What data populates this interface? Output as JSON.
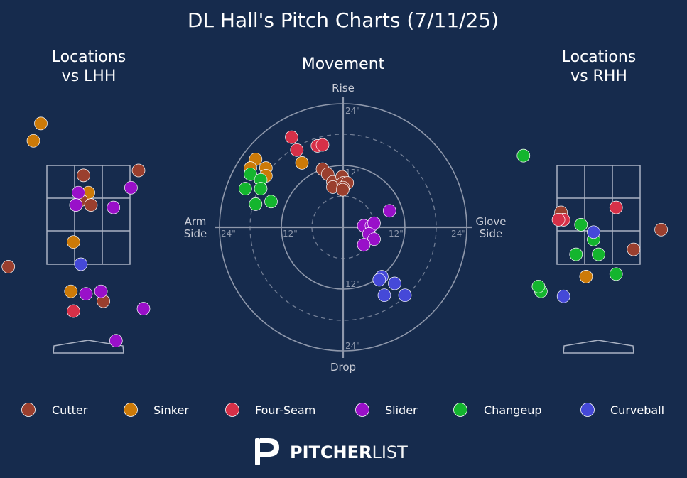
{
  "title": "DL Hall's Pitch Charts (7/11/25)",
  "colors": {
    "background": "#162b4d",
    "Cutter": "#9a3f2e",
    "Sinker": "#cc7a08",
    "Four-Seam": "#d63048",
    "Slider": "#9910c9",
    "Changeup": "#14b52e",
    "Curveball": "#4549d8"
  },
  "panels": {
    "lhh_title_line1": "Locations",
    "lhh_title_line2": "vs LHH",
    "movement_title": "Movement",
    "rhh_title_line1": "Locations",
    "rhh_title_line2": "vs RHH"
  },
  "movement_labels": {
    "top": "Rise",
    "bottom": "Drop",
    "left_line1": "Arm",
    "left_line2": "Side",
    "right_line1": "Glove",
    "right_line2": "Side",
    "tick_24": "24\"",
    "tick_12": "12\""
  },
  "brand": {
    "bold": "PITCHER",
    "light": "LIST"
  },
  "chart_data": [
    {
      "type": "scatter",
      "panel": "Locations vs LHH",
      "xlim": [
        -2,
        2
      ],
      "ylim": [
        0,
        5
      ],
      "series": [
        {
          "name": "Sinker",
          "points": [
            [
              -0.95,
              4.35
            ],
            [
              -1.1,
              4.0
            ],
            [
              -0.3,
              1.95
            ],
            [
              -0.35,
              0.95
            ],
            [
              0.0,
              2.95
            ]
          ]
        },
        {
          "name": "Cutter",
          "points": [
            [
              -0.1,
              3.3
            ],
            [
              -0.15,
              2.8
            ],
            [
              0.05,
              2.7
            ],
            [
              1.0,
              3.4
            ],
            [
              -1.6,
              1.45
            ],
            [
              0.3,
              0.75
            ]
          ]
        },
        {
          "name": "Four-Seam",
          "points": [
            [
              -0.3,
              0.55
            ]
          ]
        },
        {
          "name": "Slider",
          "points": [
            [
              -0.2,
              2.95
            ],
            [
              -0.25,
              2.7
            ],
            [
              0.5,
              2.65
            ],
            [
              0.85,
              3.05
            ],
            [
              0.25,
              0.95
            ],
            [
              -0.05,
              0.9
            ],
            [
              1.1,
              0.6
            ],
            [
              0.55,
              -0.05
            ]
          ]
        },
        {
          "name": "Curveball",
          "points": [
            [
              -0.15,
              1.5
            ]
          ]
        }
      ]
    },
    {
      "type": "scatter",
      "panel": "Movement",
      "xlim": [
        -24,
        24
      ],
      "ylim": [
        -24,
        24
      ],
      "series": [
        {
          "name": "Four-Seam",
          "points": [
            [
              -10,
              17.5
            ],
            [
              -9,
              15
            ],
            [
              -5,
              15.8
            ],
            [
              -4,
              16
            ]
          ]
        },
        {
          "name": "Sinker",
          "points": [
            [
              -17,
              13.2
            ],
            [
              -18,
              11.5
            ],
            [
              -15,
              11.5
            ],
            [
              -15,
              10
            ],
            [
              -8,
              12.5
            ]
          ]
        },
        {
          "name": "Changeup",
          "points": [
            [
              -18,
              10.3
            ],
            [
              -16,
              9.2
            ],
            [
              -19,
              7.5
            ],
            [
              -16,
              7.5
            ],
            [
              -17,
              4.5
            ],
            [
              -14,
              5
            ]
          ]
        },
        {
          "name": "Cutter",
          "points": [
            [
              -4,
              11.3
            ],
            [
              -3,
              10.3
            ],
            [
              -2,
              8.8
            ],
            [
              -2,
              7.8
            ],
            [
              -0.2,
              9.8
            ],
            [
              0,
              8.6
            ],
            [
              0.8,
              8.6
            ],
            [
              0,
              7.7
            ],
            [
              -0.1,
              7.3
            ]
          ]
        },
        {
          "name": "Slider",
          "points": [
            [
              9,
              3.2
            ],
            [
              4,
              0.3
            ],
            [
              5.5,
              0.3
            ],
            [
              6,
              0.8
            ],
            [
              5,
              -1.3
            ],
            [
              6,
              -2.3
            ],
            [
              4,
              -3.4
            ]
          ]
        },
        {
          "name": "Curveball",
          "points": [
            [
              7.5,
              -9.6
            ],
            [
              7,
              -10.2
            ],
            [
              10,
              -10.9
            ],
            [
              8,
              -13.2
            ],
            [
              12,
              -13.2
            ]
          ]
        }
      ]
    },
    {
      "type": "scatter",
      "panel": "Locations vs RHH",
      "xlim": [
        -2,
        2
      ],
      "ylim": [
        0,
        5
      ],
      "series": [
        {
          "name": "Changeup",
          "points": [
            [
              -1.5,
              3.7
            ],
            [
              -0.35,
              2.3
            ],
            [
              -0.1,
              2.0
            ],
            [
              -0.45,
              1.7
            ],
            [
              0.0,
              1.7
            ],
            [
              0.35,
              1.3
            ],
            [
              -1.15,
              0.95
            ],
            [
              -1.2,
              1.05
            ]
          ]
        },
        {
          "name": "Cutter",
          "points": [
            [
              -0.75,
              2.55
            ],
            [
              0.7,
              1.8
            ],
            [
              1.25,
              2.2
            ]
          ]
        },
        {
          "name": "Four-Seam",
          "points": [
            [
              -0.7,
              2.4
            ],
            [
              -0.8,
              2.4
            ],
            [
              0.35,
              2.65
            ]
          ]
        },
        {
          "name": "Sinker",
          "points": [
            [
              -0.25,
              1.25
            ]
          ]
        },
        {
          "name": "Curveball",
          "points": [
            [
              -0.1,
              2.15
            ],
            [
              -0.7,
              0.85
            ]
          ]
        }
      ]
    }
  ],
  "legend": [
    "Cutter",
    "Sinker",
    "Four-Seam",
    "Slider",
    "Changeup",
    "Curveball"
  ]
}
